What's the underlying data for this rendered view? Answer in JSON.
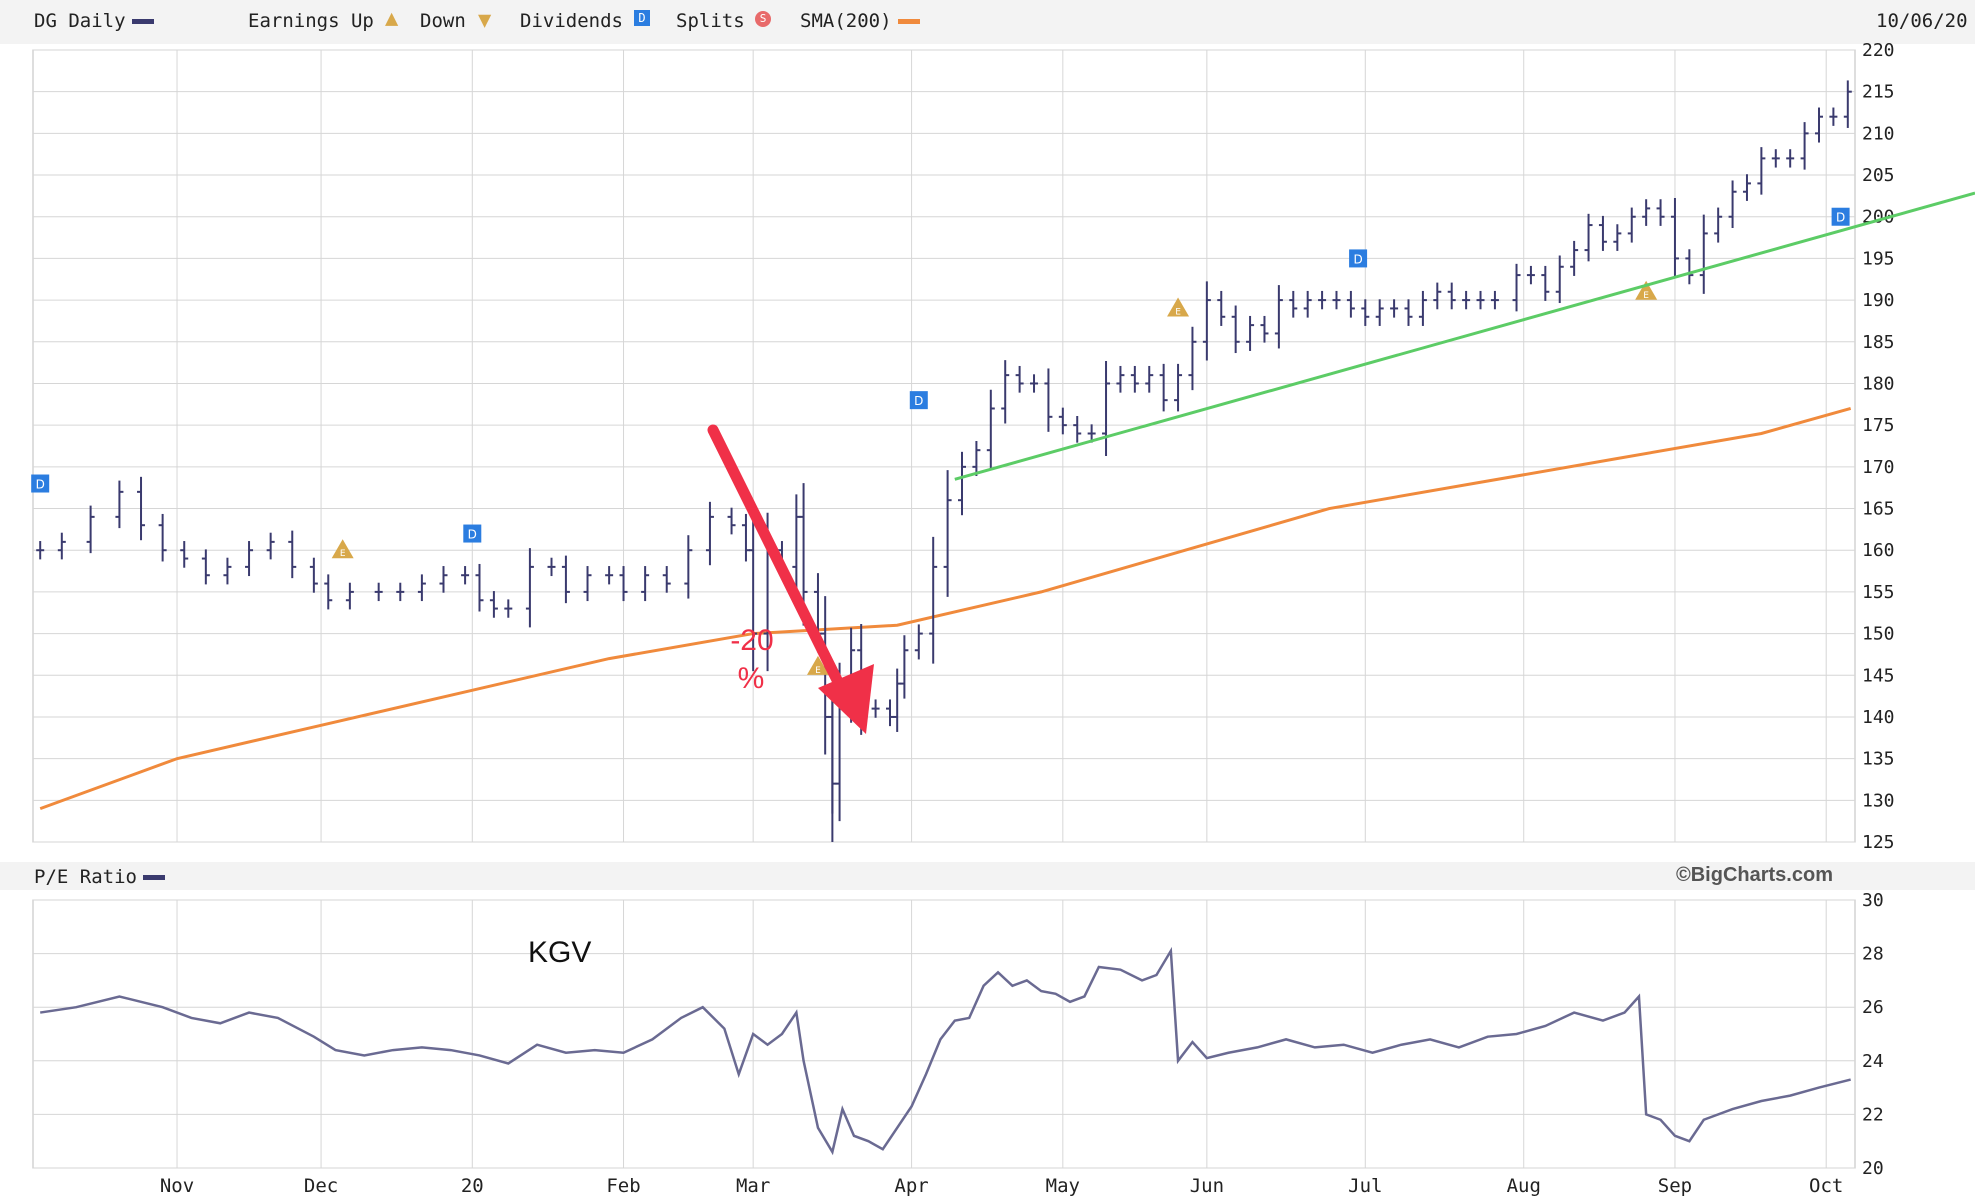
{
  "legend": {
    "symbol_label": "DG Daily",
    "earnings_label": "Earnings Up",
    "down_label": "Down",
    "dividends_label": "Dividends",
    "splits_label": "Splits",
    "sma_label": "SMA(200)",
    "date": "10/06/20"
  },
  "colors": {
    "price": "#3a3a6e",
    "sma": "#f08a3c",
    "trend": "#5ccc66",
    "arrow": "#f03048",
    "grid": "#d6d6d6",
    "dividend": "#2b7de0",
    "earnings": "#d8a84a"
  },
  "credit": "©BigCharts.com",
  "pe_label": "P/E Ratio",
  "annotations": {
    "drop_line1": "-20",
    "drop_line2": "%",
    "kgv": "KGV"
  },
  "chart_data": [
    {
      "type": "line",
      "subtype": "ohlc-bars",
      "name": "DG Daily",
      "ylim": [
        125,
        220
      ],
      "y_ticks": [
        125,
        130,
        135,
        140,
        145,
        150,
        155,
        160,
        165,
        170,
        175,
        180,
        185,
        190,
        195,
        200,
        205,
        210,
        215,
        220
      ],
      "x_months": [
        {
          "label": "Nov",
          "pos": 2.0
        },
        {
          "label": "Dec",
          "pos": 3.0
        },
        {
          "label": "20",
          "pos": 4.05
        },
        {
          "label": "Feb",
          "pos": 5.1
        },
        {
          "label": "Mar",
          "pos": 6.0
        },
        {
          "label": "Apr",
          "pos": 7.1
        },
        {
          "label": "May",
          "pos": 8.15
        },
        {
          "label": "Jun",
          "pos": 9.15
        },
        {
          "label": "Jul",
          "pos": 10.25
        },
        {
          "label": "Aug",
          "pos": 11.35
        },
        {
          "label": "Sep",
          "pos": 12.4
        },
        {
          "label": "Oct",
          "pos": 13.45
        }
      ],
      "xlim": [
        1.0,
        13.65
      ],
      "price_points": [
        [
          1.05,
          160
        ],
        [
          1.2,
          161
        ],
        [
          1.4,
          164
        ],
        [
          1.6,
          167
        ],
        [
          1.75,
          163
        ],
        [
          1.9,
          160
        ],
        [
          2.05,
          159
        ],
        [
          2.2,
          157
        ],
        [
          2.35,
          158
        ],
        [
          2.5,
          160
        ],
        [
          2.65,
          161
        ],
        [
          2.8,
          158
        ],
        [
          2.95,
          156
        ],
        [
          3.05,
          154
        ],
        [
          3.2,
          155
        ],
        [
          3.4,
          155
        ],
        [
          3.55,
          155
        ],
        [
          3.7,
          156
        ],
        [
          3.85,
          157
        ],
        [
          4.0,
          157
        ],
        [
          4.1,
          154
        ],
        [
          4.2,
          153
        ],
        [
          4.3,
          153
        ],
        [
          4.45,
          158
        ],
        [
          4.6,
          158
        ],
        [
          4.7,
          155
        ],
        [
          4.85,
          157
        ],
        [
          5.0,
          157
        ],
        [
          5.1,
          155
        ],
        [
          5.25,
          157
        ],
        [
          5.4,
          156
        ],
        [
          5.55,
          160
        ],
        [
          5.7,
          164
        ],
        [
          5.85,
          163
        ],
        [
          5.95,
          160
        ],
        [
          6.0,
          150
        ],
        [
          6.1,
          160
        ],
        [
          6.2,
          158
        ],
        [
          6.3,
          164
        ],
        [
          6.35,
          155
        ],
        [
          6.45,
          150
        ],
        [
          6.5,
          140
        ],
        [
          6.55,
          132
        ],
        [
          6.6,
          142
        ],
        [
          6.68,
          148
        ],
        [
          6.75,
          141
        ],
        [
          6.85,
          141
        ],
        [
          6.95,
          140
        ],
        [
          7.0,
          144
        ],
        [
          7.05,
          148
        ],
        [
          7.15,
          150
        ],
        [
          7.25,
          158
        ],
        [
          7.35,
          166
        ],
        [
          7.45,
          170
        ],
        [
          7.55,
          172
        ],
        [
          7.65,
          177
        ],
        [
          7.75,
          181
        ],
        [
          7.85,
          180
        ],
        [
          7.95,
          180
        ],
        [
          8.05,
          176
        ],
        [
          8.15,
          175
        ],
        [
          8.25,
          174
        ],
        [
          8.35,
          174
        ],
        [
          8.45,
          180
        ],
        [
          8.55,
          181
        ],
        [
          8.65,
          180
        ],
        [
          8.75,
          181
        ],
        [
          8.85,
          178
        ],
        [
          8.95,
          181
        ],
        [
          9.05,
          185
        ],
        [
          9.15,
          190
        ],
        [
          9.25,
          188
        ],
        [
          9.35,
          185
        ],
        [
          9.45,
          187
        ],
        [
          9.55,
          186
        ],
        [
          9.65,
          190
        ],
        [
          9.75,
          189
        ],
        [
          9.85,
          190
        ],
        [
          9.95,
          190
        ],
        [
          10.05,
          190
        ],
        [
          10.15,
          189
        ],
        [
          10.25,
          188
        ],
        [
          10.35,
          189
        ],
        [
          10.45,
          189
        ],
        [
          10.55,
          188
        ],
        [
          10.65,
          190
        ],
        [
          10.75,
          191
        ],
        [
          10.85,
          190
        ],
        [
          10.95,
          190
        ],
        [
          11.05,
          190
        ],
        [
          11.15,
          190
        ],
        [
          11.3,
          193
        ],
        [
          11.4,
          193
        ],
        [
          11.5,
          191
        ],
        [
          11.6,
          194
        ],
        [
          11.7,
          196
        ],
        [
          11.8,
          199
        ],
        [
          11.9,
          197
        ],
        [
          12.0,
          198
        ],
        [
          12.1,
          200
        ],
        [
          12.2,
          201
        ],
        [
          12.3,
          200
        ],
        [
          12.4,
          195
        ],
        [
          12.5,
          193
        ],
        [
          12.6,
          198
        ],
        [
          12.7,
          200
        ],
        [
          12.8,
          203
        ],
        [
          12.9,
          204
        ],
        [
          13.0,
          207
        ],
        [
          13.1,
          207
        ],
        [
          13.2,
          207
        ],
        [
          13.3,
          210
        ],
        [
          13.4,
          212
        ],
        [
          13.5,
          212
        ],
        [
          13.6,
          215
        ]
      ],
      "sma200": [
        [
          1.05,
          129
        ],
        [
          2.0,
          135
        ],
        [
          3.0,
          139
        ],
        [
          4.0,
          143
        ],
        [
          5.0,
          147
        ],
        [
          6.0,
          150
        ],
        [
          7.0,
          151
        ],
        [
          8.0,
          155
        ],
        [
          9.0,
          160
        ],
        [
          10.0,
          165
        ],
        [
          11.0,
          168
        ],
        [
          12.0,
          171
        ],
        [
          13.0,
          174
        ],
        [
          13.62,
          177
        ]
      ],
      "trendline": [
        [
          7.4,
          168.5
        ],
        [
          14.0,
          200.5
        ]
      ],
      "dividend_markers": [
        [
          1.05,
          168
        ],
        [
          4.05,
          162
        ],
        [
          7.15,
          178
        ],
        [
          10.2,
          195
        ],
        [
          13.55,
          200
        ]
      ],
      "earnings_markers": [
        [
          3.15,
          160
        ],
        [
          6.45,
          146
        ],
        [
          8.95,
          189
        ],
        [
          12.2,
          191
        ]
      ]
    },
    {
      "type": "line",
      "name": "P/E Ratio",
      "ylim": [
        20,
        30
      ],
      "y_ticks": [
        20,
        22,
        24,
        26,
        28,
        30
      ],
      "x_months": [
        {
          "label": "Nov",
          "pos": 2.0
        },
        {
          "label": "Dec",
          "pos": 3.0
        },
        {
          "label": "20",
          "pos": 4.05
        },
        {
          "label": "Feb",
          "pos": 5.1
        },
        {
          "label": "Mar",
          "pos": 6.0
        },
        {
          "label": "Apr",
          "pos": 7.1
        },
        {
          "label": "May",
          "pos": 8.15
        },
        {
          "label": "Jun",
          "pos": 9.15
        },
        {
          "label": "Jul",
          "pos": 10.25
        },
        {
          "label": "Aug",
          "pos": 11.35
        },
        {
          "label": "Sep",
          "pos": 12.4
        },
        {
          "label": "Oct",
          "pos": 13.45
        }
      ],
      "xlim": [
        1.0,
        13.65
      ],
      "points": [
        [
          1.05,
          25.8
        ],
        [
          1.3,
          26.0
        ],
        [
          1.6,
          26.4
        ],
        [
          1.9,
          26.0
        ],
        [
          2.1,
          25.6
        ],
        [
          2.3,
          25.4
        ],
        [
          2.5,
          25.8
        ],
        [
          2.7,
          25.6
        ],
        [
          2.95,
          24.9
        ],
        [
          3.1,
          24.4
        ],
        [
          3.3,
          24.2
        ],
        [
          3.5,
          24.4
        ],
        [
          3.7,
          24.5
        ],
        [
          3.9,
          24.4
        ],
        [
          4.1,
          24.2
        ],
        [
          4.3,
          23.9
        ],
        [
          4.5,
          24.6
        ],
        [
          4.7,
          24.3
        ],
        [
          4.9,
          24.4
        ],
        [
          5.1,
          24.3
        ],
        [
          5.3,
          24.8
        ],
        [
          5.5,
          25.6
        ],
        [
          5.65,
          26.0
        ],
        [
          5.8,
          25.2
        ],
        [
          5.9,
          23.5
        ],
        [
          6.0,
          25.0
        ],
        [
          6.1,
          24.6
        ],
        [
          6.2,
          25.0
        ],
        [
          6.3,
          25.8
        ],
        [
          6.35,
          24.0
        ],
        [
          6.45,
          21.5
        ],
        [
          6.55,
          20.6
        ],
        [
          6.62,
          22.2
        ],
        [
          6.7,
          21.2
        ],
        [
          6.8,
          21.0
        ],
        [
          6.9,
          20.7
        ],
        [
          7.0,
          21.5
        ],
        [
          7.1,
          22.3
        ],
        [
          7.2,
          23.5
        ],
        [
          7.3,
          24.8
        ],
        [
          7.4,
          25.5
        ],
        [
          7.5,
          25.6
        ],
        [
          7.6,
          26.8
        ],
        [
          7.7,
          27.3
        ],
        [
          7.8,
          26.8
        ],
        [
          7.9,
          27.0
        ],
        [
          8.0,
          26.6
        ],
        [
          8.1,
          26.5
        ],
        [
          8.2,
          26.2
        ],
        [
          8.3,
          26.4
        ],
        [
          8.4,
          27.5
        ],
        [
          8.55,
          27.4
        ],
        [
          8.7,
          27.0
        ],
        [
          8.8,
          27.2
        ],
        [
          8.9,
          28.1
        ],
        [
          8.95,
          24.0
        ],
        [
          9.05,
          24.7
        ],
        [
          9.15,
          24.1
        ],
        [
          9.3,
          24.3
        ],
        [
          9.5,
          24.5
        ],
        [
          9.7,
          24.8
        ],
        [
          9.9,
          24.5
        ],
        [
          10.1,
          24.6
        ],
        [
          10.3,
          24.3
        ],
        [
          10.5,
          24.6
        ],
        [
          10.7,
          24.8
        ],
        [
          10.9,
          24.5
        ],
        [
          11.1,
          24.9
        ],
        [
          11.3,
          25.0
        ],
        [
          11.5,
          25.3
        ],
        [
          11.7,
          25.8
        ],
        [
          11.9,
          25.5
        ],
        [
          12.05,
          25.8
        ],
        [
          12.15,
          26.4
        ],
        [
          12.2,
          22.0
        ],
        [
          12.3,
          21.8
        ],
        [
          12.4,
          21.2
        ],
        [
          12.5,
          21.0
        ],
        [
          12.6,
          21.8
        ],
        [
          12.8,
          22.2
        ],
        [
          13.0,
          22.5
        ],
        [
          13.2,
          22.7
        ],
        [
          13.4,
          23.0
        ],
        [
          13.62,
          23.3
        ]
      ]
    }
  ]
}
